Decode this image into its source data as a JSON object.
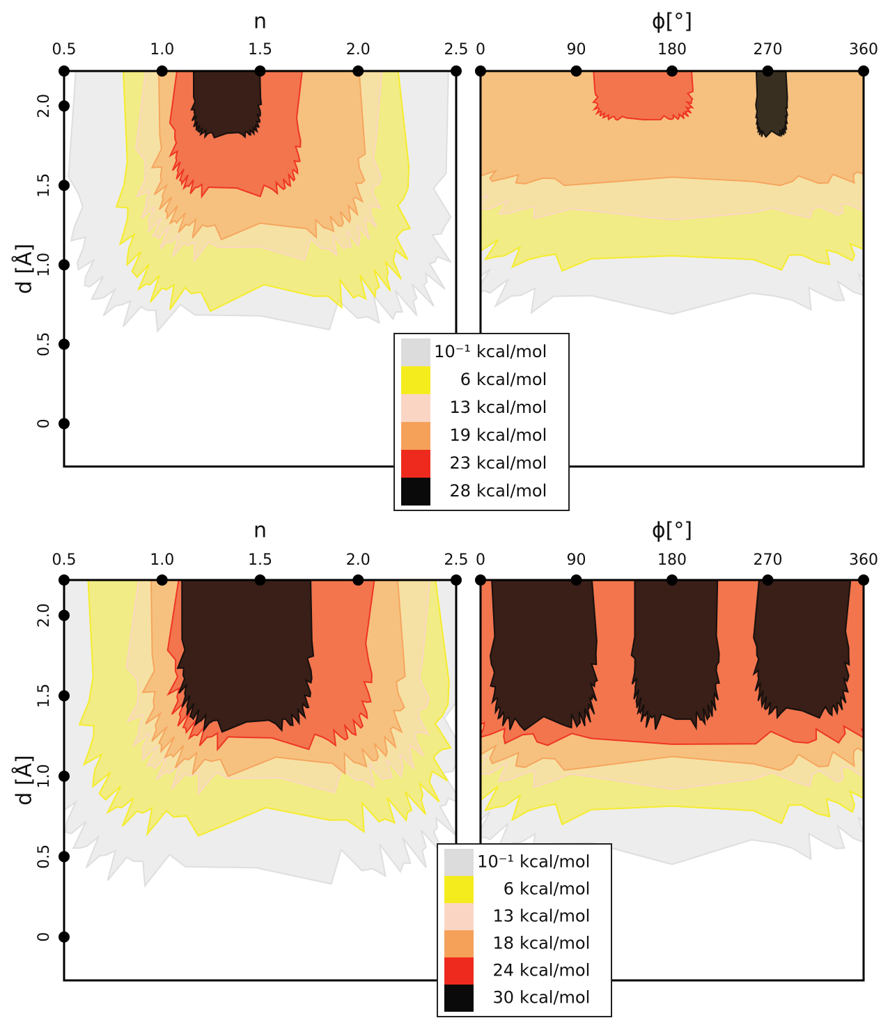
{
  "chart_data": [
    {
      "type": "isosurface",
      "ylabel": "d [Å]",
      "ylim": [
        -0.27,
        2.22
      ],
      "yticks": [
        0,
        0.5,
        {
          "value": 1,
          "label": "1.0"
        },
        1.5,
        {
          "value": 2,
          "label": "2.0"
        }
      ],
      "panels": [
        {
          "xlabel": "n",
          "xlim": [
            0.5,
            2.5
          ],
          "xticks": [
            0.5,
            {
              "value": 1,
              "label": "1.0"
            },
            1.5,
            {
              "value": 2,
              "label": "2.0"
            },
            2.5
          ]
        },
        {
          "xlabel": "ϕ[°]",
          "xlim": [
            0,
            360
          ],
          "xticks": [
            0,
            90,
            180,
            270,
            360
          ]
        }
      ],
      "unit": "kcal/mol",
      "levels": [
        {
          "value": 0.1,
          "label": "10⁻¹",
          "color": "#dcdcdc"
        },
        {
          "value": 6,
          "color": "#f5ec1e"
        },
        {
          "value": 13,
          "color": "#fbd5c4"
        },
        {
          "value": 19,
          "color": "#f5a15a"
        },
        {
          "value": 23,
          "color": "#ee2a1e"
        },
        {
          "value": 28,
          "color": "#0a0a0a"
        }
      ]
    },
    {
      "type": "isosurface",
      "ylabel": "d [Å]",
      "ylim": [
        -0.27,
        2.22
      ],
      "yticks": [
        0,
        0.5,
        {
          "value": 1,
          "label": "1.0"
        },
        1.5,
        {
          "value": 2,
          "label": "2.0"
        }
      ],
      "panels": [
        {
          "xlabel": "n",
          "xlim": [
            0.5,
            2.5
          ],
          "xticks": [
            0.5,
            {
              "value": 1,
              "label": "1.0"
            },
            1.5,
            {
              "value": 2,
              "label": "2.0"
            },
            2.5
          ]
        },
        {
          "xlabel": "ϕ[°]",
          "xlim": [
            0,
            360
          ],
          "xticks": [
            0,
            90,
            180,
            270,
            360
          ]
        }
      ],
      "unit": "kcal/mol",
      "levels": [
        {
          "value": 0.1,
          "label": "10⁻¹",
          "color": "#dcdcdc"
        },
        {
          "value": 6,
          "color": "#f5ec1e"
        },
        {
          "value": 13,
          "color": "#fbd5c4"
        },
        {
          "value": 18,
          "color": "#f5a15a"
        },
        {
          "value": 24,
          "color": "#ee2a1e"
        },
        {
          "value": 30,
          "color": "#0a0a0a"
        }
      ]
    }
  ]
}
